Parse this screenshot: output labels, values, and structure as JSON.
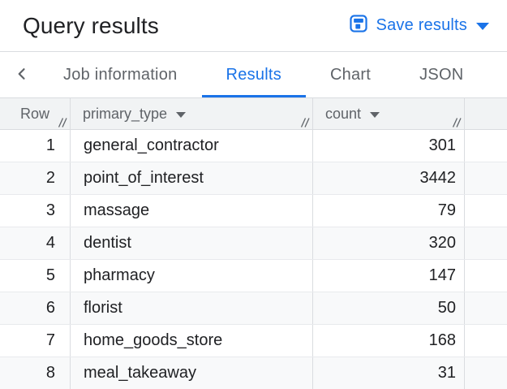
{
  "header": {
    "title": "Query results",
    "save_button": {
      "label": "Save results",
      "icon": "save-icon",
      "caret_icon": "dropdown-caret-icon"
    }
  },
  "tabs": [
    {
      "label": "Job information",
      "active": false
    },
    {
      "label": "Results",
      "active": true
    },
    {
      "label": "Chart",
      "active": false
    },
    {
      "label": "JSON",
      "active": false
    }
  ],
  "table": {
    "columns": [
      {
        "label": "Row",
        "has_menu": false
      },
      {
        "label": "primary_type",
        "has_menu": true
      },
      {
        "label": "count",
        "has_menu": true
      }
    ],
    "rows": [
      {
        "row": 1,
        "primary_type": "general_contractor",
        "count": 301
      },
      {
        "row": 2,
        "primary_type": "point_of_interest",
        "count": 3442
      },
      {
        "row": 3,
        "primary_type": "massage",
        "count": 79
      },
      {
        "row": 4,
        "primary_type": "dentist",
        "count": 320
      },
      {
        "row": 5,
        "primary_type": "pharmacy",
        "count": 147
      },
      {
        "row": 6,
        "primary_type": "florist",
        "count": 50
      },
      {
        "row": 7,
        "primary_type": "home_goods_store",
        "count": 168
      },
      {
        "row": 8,
        "primary_type": "meal_takeaway",
        "count": 31
      }
    ]
  },
  "colors": {
    "accent_blue": "#1a73e8",
    "text_primary": "#202124",
    "text_secondary": "#5f6368",
    "header_bg": "#f1f3f4",
    "row_alt_bg": "#f8f9fa",
    "border": "#dadce0",
    "row_border": "#e8eaed"
  }
}
